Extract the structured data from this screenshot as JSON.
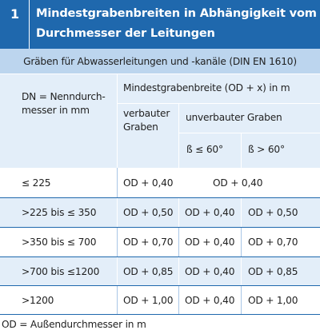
{
  "table": {
    "number": "1",
    "title_line1": "Mindestgrabenbreiten in Abhängigkeit vom",
    "title_line2": "Durchmesser der Leitungen",
    "subtitle": "Gräben für Abwasserleitungen und -kanäle (DIN EN 1610)",
    "header": {
      "dn_line1": "DN = Nenndurch-",
      "dn_line2": "messer in mm",
      "width_title": "Mindestgrabenbreite (OD + x) in m",
      "braced_line1": "verbauter",
      "braced_line2": "Graben",
      "unbraced": "unverbauter Graben",
      "angle_low": "ß ≤ 60°",
      "angle_high": "ß > 60°"
    },
    "rows": [
      {
        "dn": "≤ 225",
        "braced": "OD + 0,40",
        "unbraced_merged": "OD + 0,40"
      },
      {
        "dn": ">225 bis ≤ 350",
        "braced": "OD + 0,50",
        "low": "OD + 0,40",
        "high": "OD + 0,50"
      },
      {
        "dn": ">350 bis ≤ 700",
        "braced": "OD + 0,70",
        "low": "OD + 0,40",
        "high": "OD + 0,70"
      },
      {
        "dn": ">700 bis ≤1200",
        "braced": "OD + 0,85",
        "low": "OD + 0,40",
        "high": "OD + 0,85"
      },
      {
        "dn": ">1200",
        "braced": "OD + 1,00",
        "low": "OD + 0,40",
        "high": "OD + 1,00"
      }
    ],
    "footnote": "OD = Außendurchmesser in m"
  },
  "colors": {
    "title_bg": "#1f68ad",
    "subtitle_bg": "#bcd5ee",
    "light_row_bg": "#e3eef9"
  }
}
